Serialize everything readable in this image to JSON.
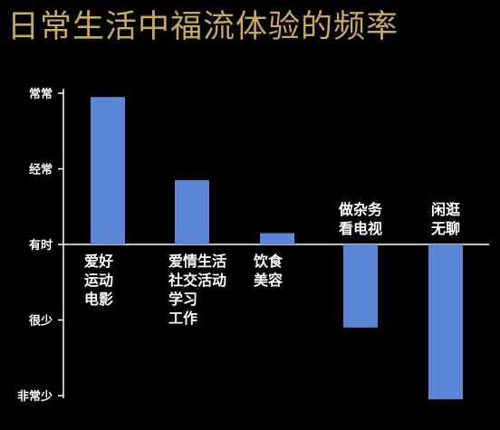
{
  "title": "日常生活中福流体验的频率",
  "colors": {
    "background": "#000000",
    "title": "#c9a95a",
    "bar": "#5b86d8",
    "axis": "#ffffff",
    "text": "#ffffff"
  },
  "chart_data": {
    "type": "bar",
    "title": "日常生活中福流体验的频率",
    "xlabel": "",
    "ylabel": "",
    "y_ticks": [
      "非常少",
      "很少",
      "有时",
      "经常",
      "常常"
    ],
    "ylim": [
      -2,
      2
    ],
    "grid": false,
    "legend": "none",
    "categories": [
      [
        "爱好",
        "运动",
        "电影"
      ],
      [
        "爱情生活",
        "社交活动",
        "学习",
        "工作"
      ],
      [
        "饮食",
        "美容"
      ],
      [
        "做杂务",
        "看电视"
      ],
      [
        "闲逛",
        "无聊"
      ]
    ],
    "values": [
      1.95,
      0.85,
      0.15,
      -1.1,
      -2.05
    ]
  }
}
